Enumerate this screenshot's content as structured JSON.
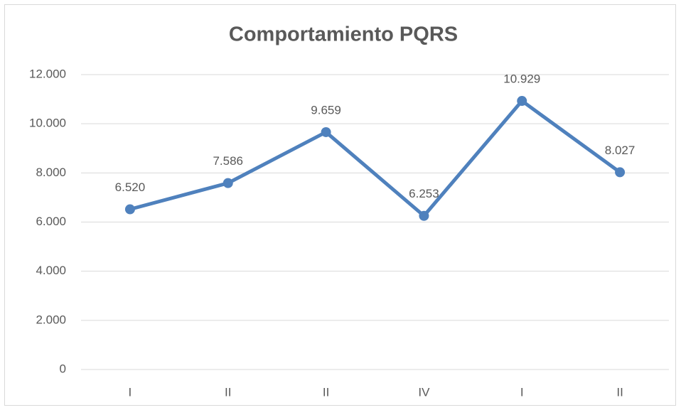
{
  "chart_data": {
    "type": "line",
    "title": "Comportamiento PQRS",
    "categories": [
      "I",
      "II",
      "II",
      "IV",
      "I",
      "II"
    ],
    "values": [
      6520,
      7586,
      9659,
      6253,
      10929,
      8027
    ],
    "value_labels": [
      "6.520",
      "7.586",
      "9.659",
      "6.253",
      "10.929",
      "8.027"
    ],
    "color": "#4f81bd",
    "ylim": [
      0,
      12000
    ],
    "yticks": [
      0,
      {
        "value": 2000,
        "label": "2.000"
      },
      {
        "value": 4000,
        "label": "4.000"
      },
      {
        "value": 6000,
        "label": "6.000"
      },
      {
        "value": 8000,
        "label": "8.000"
      },
      {
        "value": 10000,
        "label": "10.000"
      },
      {
        "value": 12000,
        "label": "12.000"
      }
    ],
    "grid": true
  }
}
